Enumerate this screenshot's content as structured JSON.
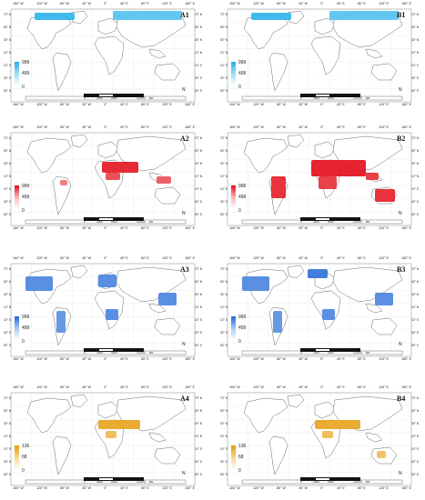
{
  "figure": {
    "lon_ticks": [
      "160° W",
      "120° W",
      "80° W",
      "40° W",
      "0°",
      "40° E",
      "80° E",
      "120° E",
      "160° E"
    ],
    "lat_ticks": [
      "70° N",
      "50° N",
      "30° N",
      "10° N",
      "10° S",
      "30° S",
      "50° S"
    ],
    "scale": {
      "labels": [
        "0",
        "2500",
        "5000",
        "10,000"
      ],
      "unit": "km"
    },
    "north_symbol": "N",
    "colors": {
      "blue_light": "#9fdcf5",
      "blue_dark": "#1fb0ec",
      "red_light": "#f7b5b5",
      "red_dark": "#e30b17",
      "royal_light": "#a7c8f2",
      "royal_dark": "#1f66d6",
      "orange_light": "#f7d48a",
      "orange_dark": "#e59a0a",
      "land_outline": "#6a6a6a"
    }
  },
  "panels": [
    {
      "id": "A1",
      "color": "blue",
      "legend": {
        "max": "999",
        "mid": "499",
        "min": "0"
      }
    },
    {
      "id": "B1",
      "color": "blue",
      "legend": {
        "max": "999",
        "mid": "499",
        "min": "0"
      }
    },
    {
      "id": "A2",
      "color": "red",
      "legend": {
        "max": "999",
        "mid": "499",
        "min": "0"
      }
    },
    {
      "id": "B2",
      "color": "red",
      "legend": {
        "max": "999",
        "mid": "499",
        "min": "0"
      }
    },
    {
      "id": "A3",
      "color": "royal",
      "legend": {
        "max": "999",
        "mid": "499",
        "min": "0"
      }
    },
    {
      "id": "B3",
      "color": "royal",
      "legend": {
        "max": "999",
        "mid": "499",
        "min": "0"
      }
    },
    {
      "id": "A4",
      "color": "orange",
      "legend": {
        "max": "136",
        "mid": "68",
        "min": "0"
      }
    },
    {
      "id": "B4",
      "color": "orange",
      "legend": {
        "max": "136",
        "mid": "68",
        "min": "0"
      }
    }
  ]
}
